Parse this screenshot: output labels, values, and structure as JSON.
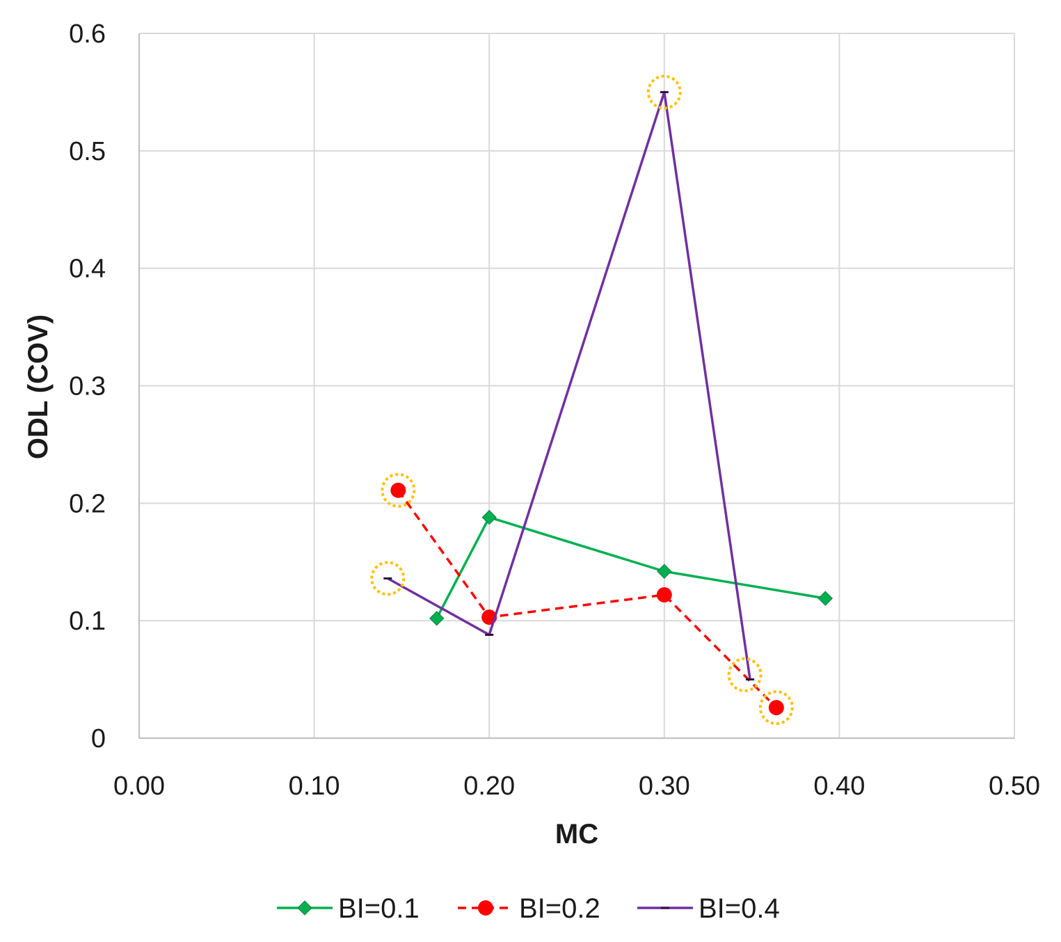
{
  "chart_data": {
    "type": "line",
    "title": "",
    "xlabel": "MC",
    "ylabel": "ODL (COV)",
    "xlim": [
      0,
      0.5
    ],
    "ylim": [
      0,
      0.6
    ],
    "x_ticks": [
      "0.00",
      "0.10",
      "0.20",
      "0.30",
      "0.40",
      "0.50"
    ],
    "y_ticks": [
      "0",
      "0.1",
      "0.2",
      "0.3",
      "0.4",
      "0.5",
      "0.6"
    ],
    "grid": true,
    "legend_position": "bottom",
    "series": [
      {
        "name": "BI=0.1",
        "color": "#00b050",
        "marker": "diamond",
        "dash": "solid",
        "x": [
          0.17,
          0.2,
          0.3,
          0.392
        ],
        "y": [
          0.102,
          0.188,
          0.142,
          0.119
        ]
      },
      {
        "name": "BI=0.2",
        "color": "#ff0000",
        "marker": "circle",
        "dash": "dashed",
        "x": [
          0.148,
          0.2,
          0.3,
          0.364
        ],
        "y": [
          0.211,
          0.103,
          0.122,
          0.026
        ]
      },
      {
        "name": "BI=0.4",
        "color": "#7030a0",
        "marker": "dash",
        "dash": "solid",
        "x": [
          0.142,
          0.2,
          0.3,
          0.349
        ],
        "y": [
          0.136,
          0.088,
          0.55,
          0.05
        ]
      }
    ],
    "highlights": {
      "color": "#ffc000",
      "points": [
        {
          "x": 0.148,
          "y": 0.211
        },
        {
          "x": 0.142,
          "y": 0.136
        },
        {
          "x": 0.3,
          "y": 0.55
        },
        {
          "x": 0.346,
          "y": 0.054
        },
        {
          "x": 0.364,
          "y": 0.026
        }
      ]
    }
  }
}
